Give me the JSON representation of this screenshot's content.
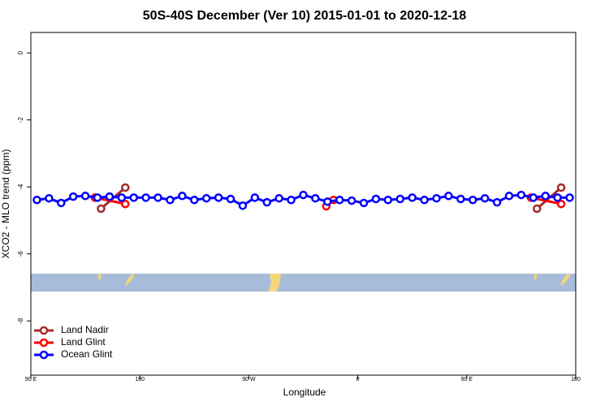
{
  "chart_data": {
    "type": "line",
    "title": "50S-40S December (Ver 10)   2015-01-01 to 2020-12-18",
    "x_label": "Longitude",
    "y_label": "XCO2 - MLO trend (ppm)",
    "xlim": [
      90,
      540
    ],
    "ylim": [
      -9.62,
      0.61
    ],
    "xticks": [
      {
        "value": 90,
        "label": "90 E"
      },
      180,
      {
        "value": 270,
        "label": "90 W"
      },
      {
        "value": 360,
        "label": "0"
      },
      {
        "value": 450,
        "label": "90 E"
      },
      {
        "value": 540,
        "label": "180"
      }
    ],
    "yticks": [
      0,
      -2,
      -4,
      -6,
      -8
    ],
    "legend": "bottomleft",
    "series": [
      {
        "name": "Land Nadir",
        "color": "#a52a2a",
        "x": [
          148,
          168,
          338,
          508,
          528
        ],
        "values": [
          -4.65,
          -4.02,
          null,
          -4.65,
          -4.02
        ]
      },
      {
        "name": "Land Glint",
        "color": "#ff0000",
        "x": [
          143,
          168,
          250,
          334,
          340,
          420,
          503,
          528
        ],
        "values": [
          -4.32,
          -4.51,
          null,
          -4.58,
          -4.39,
          null,
          -4.32,
          -4.51
        ]
      },
      {
        "name": "Ocean Glint",
        "color": "#0000ff",
        "x": [
          95,
          105,
          115,
          125,
          135,
          145,
          155,
          165,
          175,
          185,
          195,
          205,
          215,
          225,
          235,
          245,
          255,
          265,
          275,
          285,
          295,
          305,
          315,
          325,
          335,
          345,
          355,
          365,
          375,
          385,
          395,
          405,
          415,
          425,
          435,
          445,
          455,
          465,
          475,
          485,
          495,
          505,
          515,
          525,
          535
        ],
        "values": [
          -4.39,
          -4.34,
          -4.48,
          -4.29,
          -4.27,
          -4.32,
          -4.29,
          -4.32,
          -4.32,
          -4.32,
          -4.32,
          -4.39,
          -4.27,
          -4.39,
          -4.34,
          -4.32,
          -4.36,
          -4.56,
          -4.32,
          -4.46,
          -4.34,
          -4.39,
          -4.24,
          -4.34,
          -4.44,
          -4.39,
          -4.41,
          -4.48,
          -4.36,
          -4.39,
          -4.36,
          -4.32,
          -4.39,
          -4.34,
          -4.27,
          -4.36,
          -4.39,
          -4.34,
          -4.46,
          -4.27,
          -4.24,
          -4.32,
          -4.27,
          -4.32,
          -4.32
        ]
      }
    ]
  }
}
